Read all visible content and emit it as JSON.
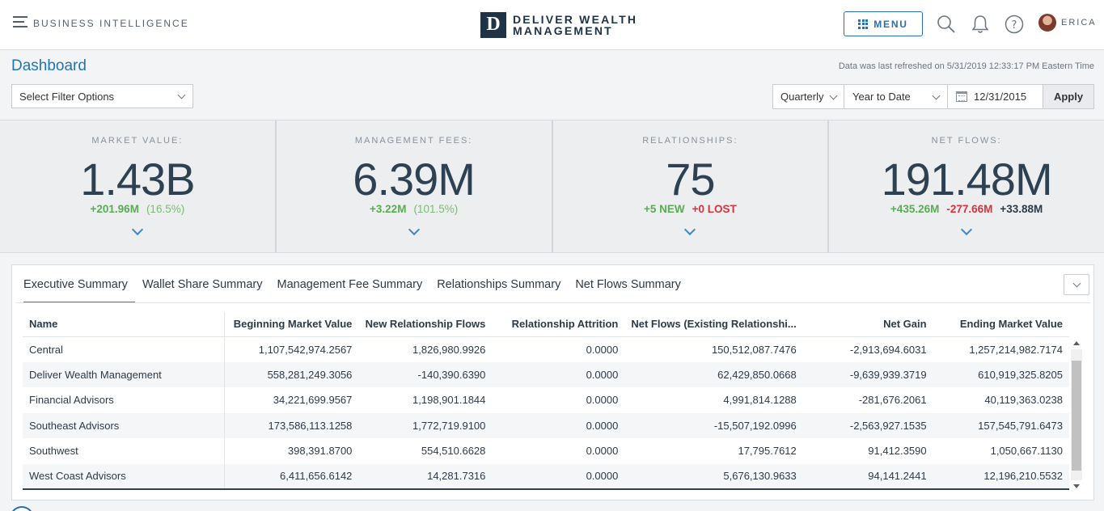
{
  "header": {
    "section_label": "BUSINESS INTELLIGENCE",
    "logo_letter": "D",
    "logo_line1": "DELIVER WEALTH",
    "logo_line2": "MANAGEMENT",
    "menu_label": "MENU",
    "user_name": "ERICA",
    "icons": [
      "hamburger-icon",
      "grid-icon",
      "search-icon",
      "bell-icon",
      "help-icon",
      "avatar"
    ]
  },
  "toolbar": {
    "title": "Dashboard",
    "refresh_text": "Data was last refreshed on 5/31/2019 12:33:17 PM Eastern Time",
    "filter_placeholder": "Select Filter Options",
    "period": "Quarterly",
    "range": "Year to Date",
    "date": "12/31/2015",
    "apply_label": "Apply"
  },
  "kpis": [
    {
      "label": "MARKET VALUE:",
      "value": "1.43B",
      "sub": [
        {
          "text": "+201.96M",
          "tone": "pos"
        },
        {
          "text": "(16.5%)",
          "tone": "pos-light"
        }
      ]
    },
    {
      "label": "MANAGEMENT FEES:",
      "value": "6.39M",
      "sub": [
        {
          "text": "+3.22M",
          "tone": "pos"
        },
        {
          "text": "(101.5%)",
          "tone": "pos-light"
        }
      ]
    },
    {
      "label": "RELATIONSHIPS:",
      "value": "75",
      "sub": [
        {
          "text": "+5 NEW",
          "tone": "pos"
        },
        {
          "text": "+0 LOST",
          "tone": "neg"
        }
      ]
    },
    {
      "label": "NET FLOWS:",
      "value": "191.48M",
      "sub": [
        {
          "text": "+435.26M",
          "tone": "pos"
        },
        {
          "text": "-277.66M",
          "tone": "neg"
        },
        {
          "text": "+33.88M",
          "tone": "neu"
        }
      ]
    }
  ],
  "tabs": [
    {
      "label": "Executive Summary",
      "active": true
    },
    {
      "label": "Wallet Share Summary"
    },
    {
      "label": "Management Fee Summary"
    },
    {
      "label": "Relationships Summary"
    },
    {
      "label": "Net Flows Summary"
    }
  ],
  "table": {
    "columns": [
      "Name",
      "Beginning Market Value",
      "New Relationship Flows",
      "Relationship Attrition",
      "Net Flows (Existing Relationshi...",
      "Net Gain",
      "Ending Market Value"
    ],
    "rows": [
      [
        "Central",
        "1,107,542,974.2567",
        "1,826,980.9926",
        "0.0000",
        "150,512,087.7476",
        "-2,913,694.6031",
        "1,257,214,982.7174"
      ],
      [
        "Deliver Wealth Management",
        "558,281,249.3056",
        "-140,390.6390",
        "0.0000",
        "62,429,850.0668",
        "-9,639,939.3719",
        "610,919,325.8205"
      ],
      [
        "Financial Advisors",
        "34,221,699.9567",
        "1,198,901.1844",
        "0.0000",
        "4,991,814.1288",
        "-281,676.2061",
        "40,119,363.0238"
      ],
      [
        "Southeast Advisors",
        "173,586,113.1258",
        "1,772,719.9100",
        "0.0000",
        "-15,507,192.0996",
        "-2,563,927.1535",
        "157,545,791.6473"
      ],
      [
        "Southwest",
        "398,391.8700",
        "554,510.6628",
        "0.0000",
        "17,795.7612",
        "91,412.3590",
        "1,050,667.1130"
      ],
      [
        "West Coast Advisors",
        "6,411,656.6142",
        "14,281.7316",
        "0.0000",
        "5,676,130.9633",
        "94,141.2441",
        "12,196,210.5532"
      ]
    ]
  }
}
